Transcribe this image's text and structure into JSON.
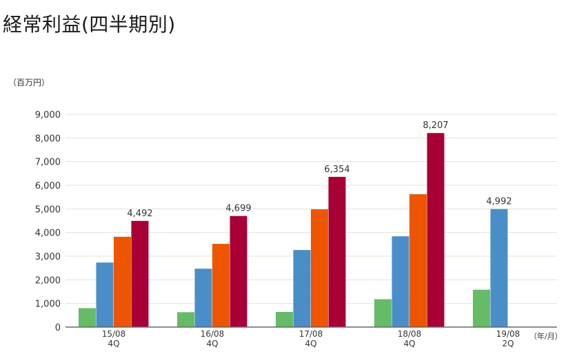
{
  "page": {
    "title": "経常利益(四半期別)"
  },
  "chart_data": {
    "type": "bar",
    "y_unit_label": "（百万円）",
    "x_unit_label": "（年/月）",
    "categories": [
      {
        "period": "15/08",
        "quarter": "4Q"
      },
      {
        "period": "16/08",
        "quarter": "4Q"
      },
      {
        "period": "17/08",
        "quarter": "4Q"
      },
      {
        "period": "18/08",
        "quarter": "4Q"
      },
      {
        "period": "19/08",
        "quarter": "2Q"
      }
    ],
    "series": [
      {
        "color": "#66bb66",
        "values": [
          800,
          630,
          640,
          1180,
          1580
        ]
      },
      {
        "color": "#4a8ec8",
        "values": [
          2730,
          2470,
          3260,
          3840,
          4992
        ]
      },
      {
        "color": "#ee5500",
        "values": [
          3820,
          3520,
          4980,
          5620,
          null
        ]
      },
      {
        "color": "#a80036",
        "values": [
          4492,
          4699,
          6354,
          8207,
          null
        ]
      }
    ],
    "data_labels": [
      {
        "category": 0,
        "series": 3,
        "text": "4,492"
      },
      {
        "category": 1,
        "series": 3,
        "text": "4,699"
      },
      {
        "category": 2,
        "series": 3,
        "text": "6,354"
      },
      {
        "category": 3,
        "series": 3,
        "text": "8,207"
      },
      {
        "category": 4,
        "series": 1,
        "text": "4,992"
      }
    ],
    "ylim": [
      0,
      9000
    ],
    "yticks": [
      0,
      1000,
      2000,
      3000,
      4000,
      5000,
      6000,
      7000,
      8000,
      9000
    ],
    "ytick_labels": [
      "0",
      "1,000",
      "2,000",
      "3,000",
      "4,000",
      "5,000",
      "6,000",
      "7,000",
      "8,000",
      "9,000"
    ],
    "grid": true,
    "legend": false
  }
}
